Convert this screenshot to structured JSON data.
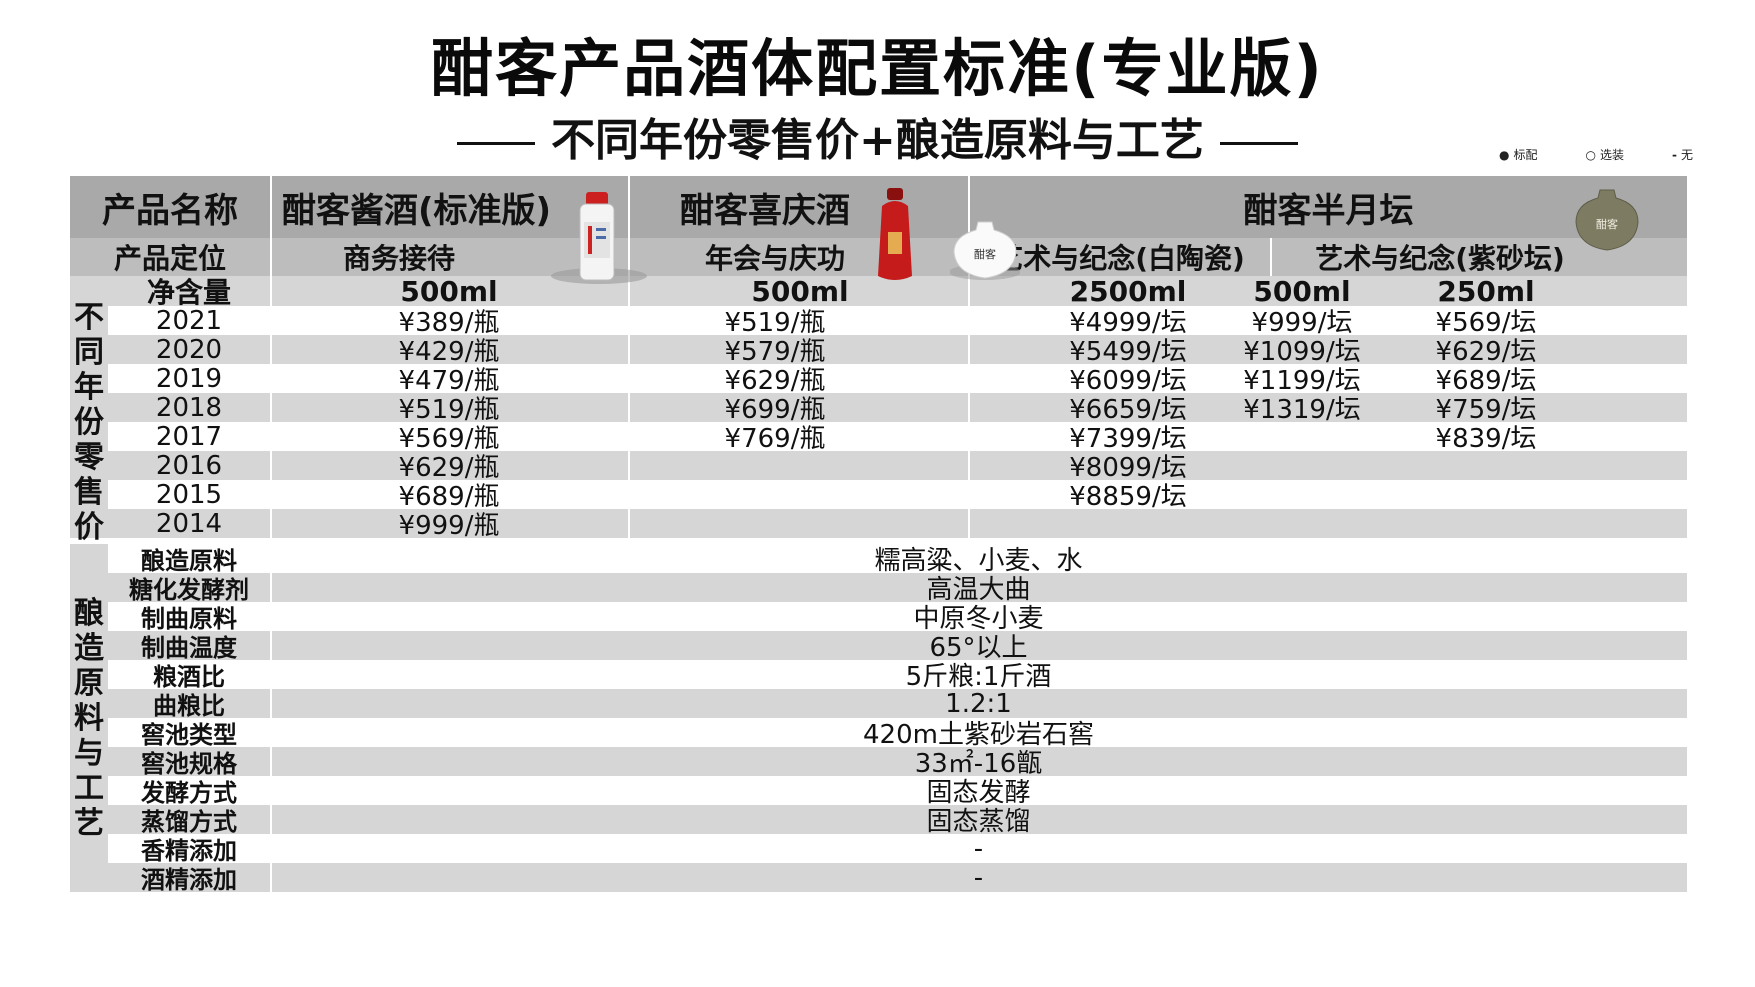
{
  "title": "酣客产品酒体配置标准(专业版)",
  "subtitle": "不同年份零售价+酿造原料与工艺",
  "legend": [
    {
      "symbol": "●",
      "label": "标配"
    },
    {
      "symbol": "○",
      "label": "选装"
    },
    {
      "symbol": "-",
      "label": "无"
    }
  ],
  "header": {
    "name_label": "产品名称",
    "position_label": "产品定位",
    "volume_label": "净含量",
    "products": [
      {
        "name": "酣客酱酒(标准版)",
        "position": "商务接待",
        "volume": "500ml"
      },
      {
        "name": "酣客喜庆酒",
        "position": "年会与庆功",
        "volume": "500ml"
      },
      {
        "name": "酣客半月坛",
        "position_a": "艺术与纪念(白陶瓷)",
        "position_b": "艺术与纪念(紫砂坛)",
        "volumes": [
          "2500ml",
          "500ml",
          "250ml"
        ]
      }
    ],
    "jar_label": "酣客"
  },
  "price_section_label": "不同年份零售价",
  "prices": [
    {
      "year": "2021",
      "c1": "¥389/瓶",
      "c2": "¥519/瓶",
      "c3": "¥4999/坛",
      "c4": "¥999/坛",
      "c5": "¥569/坛"
    },
    {
      "year": "2020",
      "c1": "¥429/瓶",
      "c2": "¥579/瓶",
      "c3": "¥5499/坛",
      "c4": "¥1099/坛",
      "c5": "¥629/坛"
    },
    {
      "year": "2019",
      "c1": "¥479/瓶",
      "c2": "¥629/瓶",
      "c3": "¥6099/坛",
      "c4": "¥1199/坛",
      "c5": "¥689/坛"
    },
    {
      "year": "2018",
      "c1": "¥519/瓶",
      "c2": "¥699/瓶",
      "c3": "¥6659/坛",
      "c4": "¥1319/坛",
      "c5": "¥759/坛"
    },
    {
      "year": "2017",
      "c1": "¥569/瓶",
      "c2": "¥769/瓶",
      "c3": "¥7399/坛",
      "c4": "",
      "c5": "¥839/坛"
    },
    {
      "year": "2016",
      "c1": "¥629/瓶",
      "c2": "",
      "c3": "¥8099/坛",
      "c4": "",
      "c5": ""
    },
    {
      "year": "2015",
      "c1": "¥689/瓶",
      "c2": "",
      "c3": "¥8859/坛",
      "c4": "",
      "c5": ""
    },
    {
      "year": "2014",
      "c1": "¥999/瓶",
      "c2": "",
      "c3": "",
      "c4": "",
      "c5": ""
    }
  ],
  "process_section_label": "酿造原料与工艺",
  "process": [
    {
      "label": "酿造原料",
      "value": "糯高粱、小麦、水"
    },
    {
      "label": "糖化发酵剂",
      "value": "高温大曲"
    },
    {
      "label": "制曲原料",
      "value": "中原冬小麦"
    },
    {
      "label": "制曲温度",
      "value": "65°以上"
    },
    {
      "label": "粮酒比",
      "value": "5斤粮:1斤酒"
    },
    {
      "label": "曲粮比",
      "value": "1.2:1"
    },
    {
      "label": "窖池类型",
      "value": "420m土紫砂岩石窖"
    },
    {
      "label": "窖池规格",
      "value": "33㎡-16甑"
    },
    {
      "label": "发酵方式",
      "value": "固态发酵"
    },
    {
      "label": "蒸馏方式",
      "value": "固态蒸馏"
    },
    {
      "label": "香精添加",
      "value": "-"
    },
    {
      "label": "酒精添加",
      "value": "-"
    }
  ]
}
